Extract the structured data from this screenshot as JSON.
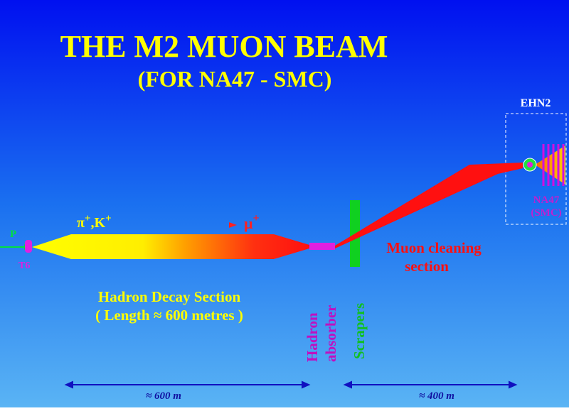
{
  "title": "THE M2 MUON BEAM",
  "subtitle": "(FOR NA47 - SMC)",
  "hall": {
    "label": "EHN2",
    "experiment": "NA47",
    "experiment_sub": "(SMC)"
  },
  "proton": "P",
  "target": "T6",
  "secondary": {
    "base1": "π",
    "sup1": "+",
    "base2": ",K",
    "sup2": "+"
  },
  "muon": {
    "base": "μ",
    "sup": "+"
  },
  "cleaning": {
    "line1": "Muon cleaning",
    "line2": "section"
  },
  "decay": {
    "line1": "Hadron Decay Section",
    "line2": "( Length ≈ 600 metres )"
  },
  "absorber": {
    "line1": "Hadron",
    "line2": "absorber"
  },
  "scrapers": "Scrapers",
  "distances": [
    "≈ 600 m",
    "≈ 400 m"
  ]
}
